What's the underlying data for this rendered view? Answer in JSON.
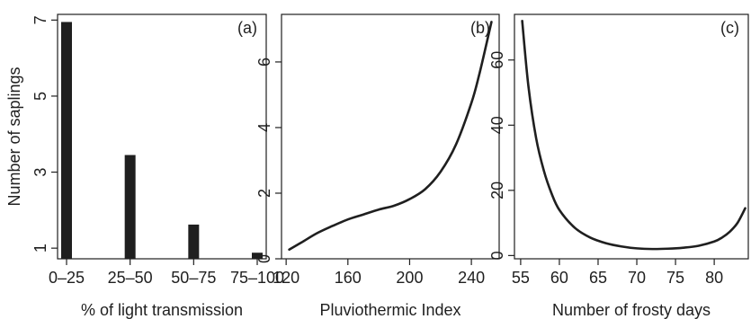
{
  "chart_data": [
    {
      "type": "bar",
      "panel_label": "(a)",
      "categories": [
        "0–25",
        "25–50",
        "50–75",
        "75–100"
      ],
      "values": [
        6.95,
        3.45,
        1.62,
        0.88
      ],
      "xlabel": "% of light transmission",
      "ylabel": "Number of saplings",
      "yticks": [
        1,
        3,
        5,
        7
      ],
      "ylim": [
        0.72,
        7.15
      ],
      "grid": false,
      "legend": "none"
    },
    {
      "type": "line",
      "panel_label": "(b)",
      "x": [
        122,
        130,
        140,
        150,
        160,
        170,
        180,
        190,
        200,
        210,
        220,
        230,
        240,
        245,
        250,
        253
      ],
      "y": [
        0.28,
        0.5,
        0.78,
        1.0,
        1.2,
        1.35,
        1.5,
        1.62,
        1.82,
        2.12,
        2.65,
        3.48,
        4.75,
        5.6,
        6.6,
        7.22
      ],
      "xlabel": "Pluviothermic Index",
      "ylabel": "",
      "xticks": [
        120,
        160,
        200,
        240
      ],
      "yticks": [
        0,
        2,
        4,
        6
      ],
      "xlim": [
        117,
        258
      ],
      "ylim": [
        0,
        7.45
      ],
      "grid": false,
      "legend": "none"
    },
    {
      "type": "line",
      "panel_label": "(c)",
      "x": [
        55.2,
        56,
        57,
        58,
        59,
        60,
        62,
        64,
        66,
        68,
        70,
        72,
        74,
        76,
        78,
        80,
        81,
        82,
        83,
        84
      ],
      "y": [
        72,
        52,
        36,
        26,
        19,
        14,
        8.5,
        5.5,
        3.8,
        2.8,
        2.2,
        2.0,
        2.1,
        2.4,
        3.0,
        4.3,
        5.5,
        7.3,
        10,
        14.5
      ],
      "xlabel": "Number of frosty days",
      "ylabel": "",
      "xticks": [
        55,
        60,
        65,
        70,
        75,
        80
      ],
      "yticks": [
        0,
        20,
        40,
        60
      ],
      "xlim": [
        54.2,
        84.4
      ],
      "ylim": [
        -1,
        74
      ],
      "grid": false,
      "legend": "none"
    }
  ]
}
